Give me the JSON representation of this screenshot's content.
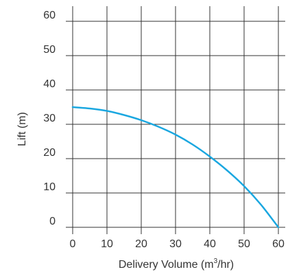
{
  "chart_data": {
    "type": "line",
    "title": "",
    "xlabel": "Delivery Volume (m³/hr)",
    "xlabel_main": "Delivery Volume (m",
    "xlabel_sup": "3",
    "xlabel_tail": "/hr)",
    "ylabel": "Lift (m)",
    "xlim": [
      0,
      60
    ],
    "ylim": [
      0,
      60
    ],
    "x_ticks": [
      "0",
      "10",
      "20",
      "30",
      "40",
      "50",
      "60"
    ],
    "y_ticks": [
      "0",
      "10",
      "20",
      "30",
      "40",
      "50",
      "60"
    ],
    "grid": true,
    "series": [
      {
        "x": [
          0,
          5,
          10,
          15,
          20,
          25,
          30,
          35,
          40,
          45,
          50,
          55,
          60
        ],
        "y": [
          35,
          34.6,
          33.9,
          32.7,
          31.2,
          29.3,
          27,
          24.1,
          20.6,
          16.6,
          12,
          6.5,
          0
        ],
        "color": "#1aa7e0"
      }
    ]
  }
}
